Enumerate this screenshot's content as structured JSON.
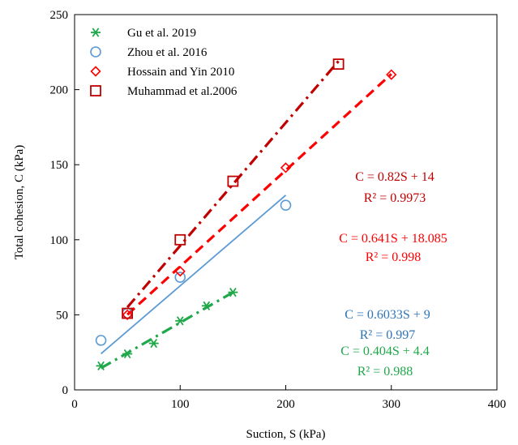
{
  "chart_data": {
    "type": "scatter",
    "xlabel": "Suction, S (kPa)",
    "ylabel": "Total cohesion, C (kPa)",
    "xlim": [
      0,
      400
    ],
    "ylim": [
      0,
      250
    ],
    "xticks": [
      "0",
      "100",
      "200",
      "300",
      "400"
    ],
    "yticks": [
      "0",
      "50",
      "100",
      "150",
      "200",
      "250"
    ],
    "grid": false,
    "legend_position": "top-left",
    "series": [
      {
        "name": "Gu et al. 2019",
        "marker": "asterisk",
        "color": "#1fa84a",
        "line_style": "dash-dot",
        "x": [
          25,
          50,
          75,
          100,
          125,
          150
        ],
        "y": [
          16,
          24,
          31,
          46,
          56,
          65
        ],
        "fit": {
          "x": [
            25,
            150
          ],
          "slope": 0.404,
          "intercept": 4.4
        }
      },
      {
        "name": "Zhou et al. 2016",
        "marker": "circle",
        "color": "#5b9bd5",
        "line_style": "solid",
        "x": [
          25,
          50,
          100,
          200
        ],
        "y": [
          33,
          51,
          75,
          123
        ],
        "fit": {
          "x": [
            25,
            200
          ],
          "slope": 0.6033,
          "intercept": 9
        }
      },
      {
        "name": "Hossain and Yin 2010",
        "marker": "diamond",
        "color": "#ff0000",
        "line_style": "dashed",
        "x": [
          50,
          100,
          200,
          300
        ],
        "y": [
          50,
          79,
          148,
          210
        ],
        "fit": {
          "x": [
            50,
            300
          ],
          "slope": 0.641,
          "intercept": 18.085
        }
      },
      {
        "name": "Muhammad et al.2006",
        "marker": "square",
        "color": "#c00000",
        "line_style": "dash-dot",
        "x": [
          50,
          100,
          150,
          250
        ],
        "y": [
          51,
          100,
          139,
          217
        ],
        "fit": {
          "x": [
            50,
            250
          ],
          "slope": 0.82,
          "intercept": 14
        }
      }
    ],
    "annotations": [
      {
        "line1": "C = 0.82S + 14",
        "line2": "R² = 0.9973",
        "color": "#c00000"
      },
      {
        "line1": "C = 0.641S + 18.085",
        "line2": "R² = 0.998",
        "color": "#ff0000"
      },
      {
        "line1": "C = 0.6033S + 9",
        "line2": "R² = 0.997",
        "color": "#2e75b6"
      },
      {
        "line1": "C = 0.404S + 4.4",
        "line2": "R² = 0.988",
        "color": "#1fa84a"
      }
    ]
  }
}
